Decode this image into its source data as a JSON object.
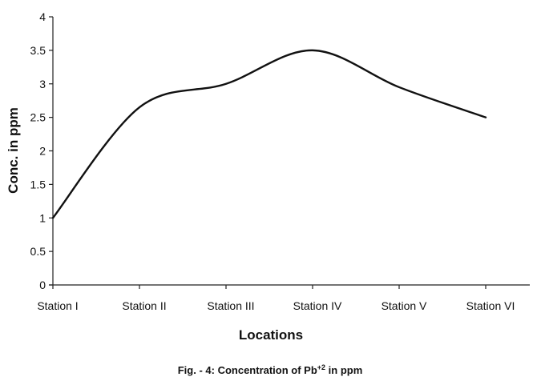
{
  "chart_data": {
    "type": "line",
    "title": "",
    "caption": {
      "prefix": "Fig. - 4: Concentration of Pb",
      "superscript": "+2",
      "suffix": " in ppm"
    },
    "xlabel": "Locations",
    "ylabel": "Conc. in ppm",
    "categories": [
      "Station I",
      "Station II",
      "Station III",
      "Station IV",
      "Station V",
      "Station VI"
    ],
    "series": [
      {
        "values": [
          1.0,
          2.65,
          3.0,
          3.5,
          2.95,
          2.5
        ],
        "color": "#111111"
      }
    ],
    "ylim": [
      0,
      4
    ],
    "yticks": [
      "0",
      "0.5",
      "1",
      "1.5",
      "2",
      "2.5",
      "3",
      "3.5",
      "4"
    ],
    "grid": false,
    "legend": "none"
  }
}
